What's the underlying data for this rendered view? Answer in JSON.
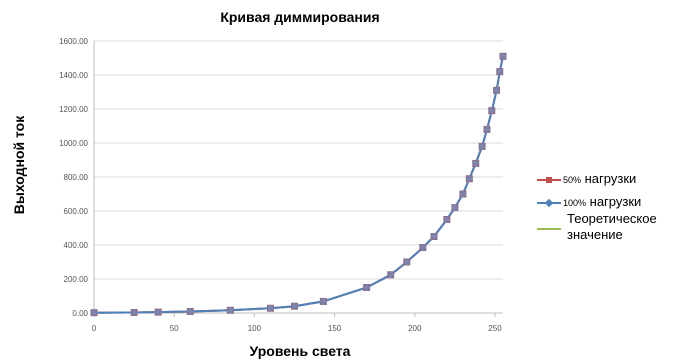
{
  "chart_data": {
    "type": "line",
    "title": "Кривая диммирования",
    "xlabel": "Уровень света",
    "ylabel": "Выходной ток",
    "xlim": [
      0,
      255
    ],
    "ylim": [
      0,
      1600
    ],
    "x_ticks": [
      "0",
      "50",
      "100",
      "150",
      "200",
      "250"
    ],
    "y_ticks": [
      "0.00",
      "200.00",
      "400.00",
      "600.00",
      "800.00",
      "1000.00",
      "1200.00",
      "1400.00",
      "1600.00"
    ],
    "x_tick_values": [
      0,
      50,
      100,
      150,
      200,
      250
    ],
    "y_tick_values": [
      0,
      200,
      400,
      600,
      800,
      1000,
      1200,
      1400,
      1600
    ],
    "grid": {
      "horizontal": true,
      "vertical": false
    },
    "legend_position": "right",
    "x": [
      0,
      25,
      40,
      60,
      85,
      110,
      125,
      143,
      170,
      185,
      195,
      205,
      212,
      220,
      225,
      230,
      234,
      238,
      242,
      245,
      248,
      251,
      253,
      255
    ],
    "series": [
      {
        "name": "50% нагрузки",
        "name_prefix": "50%",
        "name_suffix": " нагрузки",
        "color": "#c0504d",
        "marker": "square",
        "values": [
          2,
          3,
          5,
          9,
          16,
          28,
          40,
          68,
          150,
          225,
          300,
          385,
          450,
          550,
          620,
          700,
          790,
          880,
          980,
          1080,
          1190,
          1310,
          1420,
          1510
        ]
      },
      {
        "name": "100% нагрузки",
        "name_prefix": "100%",
        "name_suffix": " нагрузки",
        "color": "#4f81bd",
        "marker": "diamond",
        "values": [
          2,
          3,
          5,
          9,
          16,
          28,
          40,
          68,
          150,
          225,
          300,
          385,
          450,
          550,
          620,
          700,
          790,
          880,
          980,
          1080,
          1190,
          1310,
          1420,
          1510
        ]
      },
      {
        "name": "Теоретическое значение",
        "name_line1": "Теоретическое",
        "name_line2": "значение",
        "color": "#9bbb59",
        "marker": "none",
        "values": [
          2,
          3,
          5,
          9,
          16,
          28,
          40,
          68,
          150,
          225,
          300,
          385,
          450,
          550,
          620,
          700,
          790,
          880,
          980,
          1080,
          1190,
          1310,
          1420,
          1510
        ]
      }
    ]
  }
}
